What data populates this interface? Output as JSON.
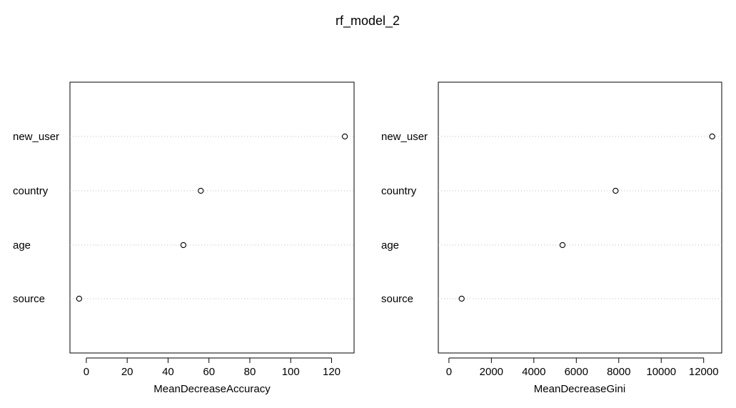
{
  "title": "rf_model_2",
  "chart_data": [
    {
      "type": "scatter",
      "xlabel": "MeanDecreaseAccuracy",
      "ylabel": "",
      "categories": [
        "new_user",
        "country",
        "age",
        "source"
      ],
      "values": [
        126.5,
        56,
        47.5,
        -3.5
      ],
      "xlim": [
        -8,
        131
      ],
      "xticks": [
        0,
        20,
        40,
        60,
        80,
        100,
        120
      ],
      "xtick_labels": [
        "0",
        "20",
        "40",
        "60",
        "80",
        "100",
        "120"
      ],
      "grid": "dotted horizontal"
    },
    {
      "type": "scatter",
      "xlabel": "MeanDecreaseGini",
      "ylabel": "",
      "categories": [
        "new_user",
        "country",
        "age",
        "source"
      ],
      "values": [
        12400,
        7850,
        5350,
        600
      ],
      "xlim": [
        -500,
        12850
      ],
      "xticks": [
        0,
        2000,
        4000,
        6000,
        8000,
        10000,
        12000
      ],
      "xtick_labels": [
        "0",
        "2000",
        "4000",
        "6000",
        "8000",
        "10000",
        "12000"
      ],
      "grid": "dotted horizontal"
    }
  ]
}
